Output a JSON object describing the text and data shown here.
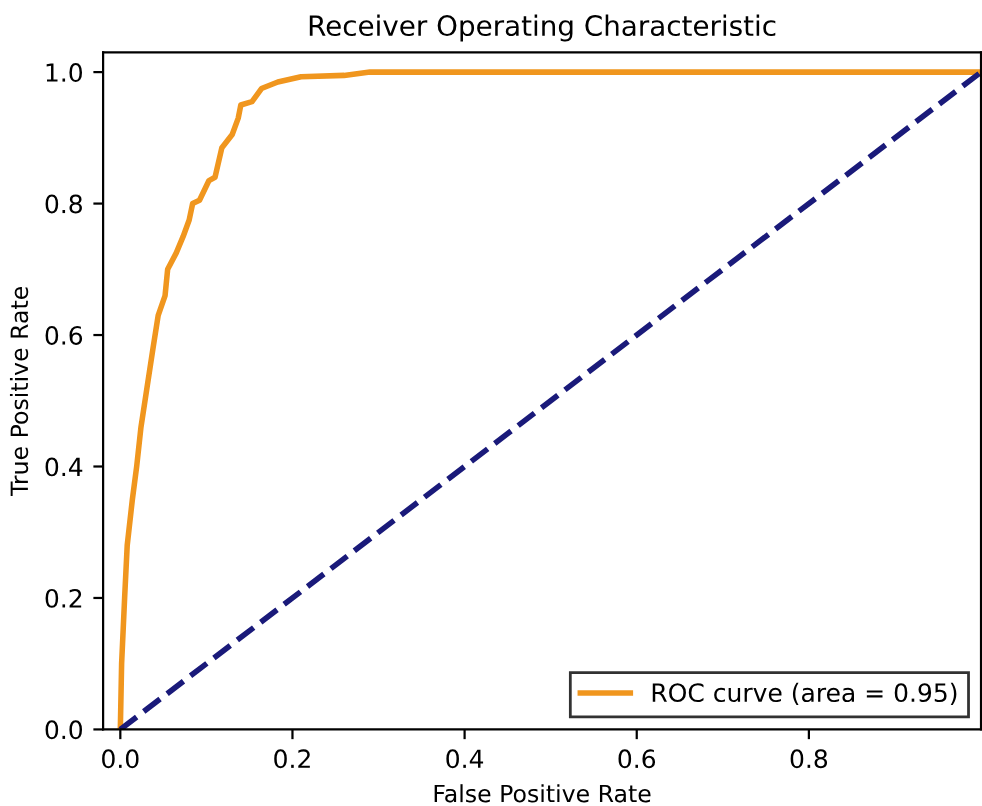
{
  "chart_data": {
    "type": "line",
    "title": "Receiver Operating Characteristic",
    "xlabel": "False Positive Rate",
    "ylabel": "True Positive Rate",
    "xlim": [
      -0.02,
      1.0
    ],
    "ylim": [
      0.0,
      1.03
    ],
    "xticks": [
      {
        "value": 0.0,
        "label": "0.0"
      },
      0.2,
      0.4,
      0.6,
      0.8
    ],
    "yticks": [
      {
        "value": 0.0,
        "label": "0.0"
      },
      0.2,
      0.4,
      0.6,
      0.8,
      {
        "value": 1.0,
        "label": "1.0"
      }
    ],
    "grid": false,
    "legend": "bottom right",
    "series": [
      {
        "name": "ROC curve (area = 0.95)",
        "color": "#f0961e",
        "line_style": "solid",
        "x": [
          0,
          0.0015,
          0.005,
          0.008,
          0.014,
          0.019,
          0.024,
          0.031,
          0.038,
          0.044,
          0.052,
          0.055,
          0.065,
          0.073,
          0.08,
          0.084,
          0.092,
          0.103,
          0.11,
          0.118,
          0.13,
          0.137,
          0.14,
          0.153,
          0.164,
          0.183,
          0.21,
          0.26,
          0.29,
          1.0
        ],
        "values": [
          0,
          0.1,
          0.2,
          0.28,
          0.35,
          0.4,
          0.46,
          0.52,
          0.58,
          0.63,
          0.66,
          0.7,
          0.725,
          0.75,
          0.775,
          0.8,
          0.805,
          0.835,
          0.84,
          0.885,
          0.905,
          0.93,
          0.95,
          0.955,
          0.975,
          0.985,
          0.993,
          0.995,
          1.0,
          1.0
        ]
      },
      {
        "color": "#1a1a7a",
        "line_style": "dashed",
        "x": [
          0,
          1
        ],
        "values": [
          0,
          1
        ]
      }
    ]
  }
}
